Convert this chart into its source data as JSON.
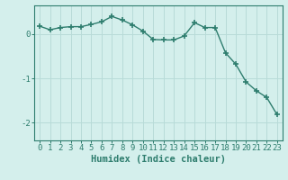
{
  "x": [
    0,
    1,
    2,
    3,
    4,
    5,
    6,
    7,
    8,
    9,
    10,
    11,
    12,
    13,
    14,
    15,
    16,
    17,
    18,
    19,
    20,
    21,
    22,
    23
  ],
  "y": [
    0.18,
    0.1,
    0.15,
    0.17,
    0.17,
    0.22,
    0.28,
    0.4,
    0.32,
    0.21,
    0.07,
    -0.12,
    -0.13,
    -0.13,
    -0.04,
    0.26,
    0.15,
    0.15,
    -0.42,
    -0.68,
    -1.08,
    -1.28,
    -1.43,
    -1.82
  ],
  "line_color": "#2e7d6e",
  "marker": "+",
  "background_color": "#d4efec",
  "grid_color": "#b8dbd8",
  "xlabel": "Humidex (Indice chaleur)",
  "xlabel_fontsize": 7.5,
  "tick_fontsize": 6.5,
  "ylim": [
    -2.4,
    0.65
  ],
  "yticks": [
    0,
    -1,
    -2
  ],
  "xticks": [
    0,
    1,
    2,
    3,
    4,
    5,
    6,
    7,
    8,
    9,
    10,
    11,
    12,
    13,
    14,
    15,
    16,
    17,
    18,
    19,
    20,
    21,
    22,
    23
  ]
}
